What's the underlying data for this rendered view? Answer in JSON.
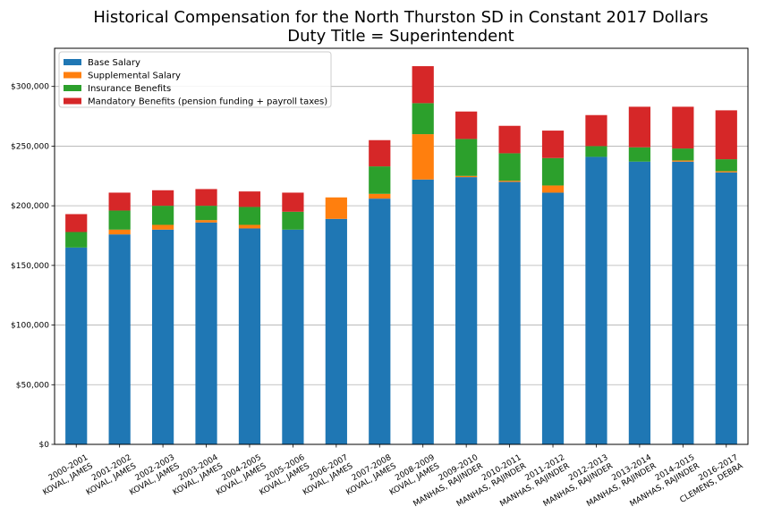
{
  "chart_data": {
    "type": "bar",
    "stacked": true,
    "title": "Historical Compensation for the North Thurston SD in Constant 2017 Dollars",
    "subtitle": "Duty Title = Superintendent",
    "xlabel": "",
    "ylabel": "",
    "ylim": [
      0,
      332000
    ],
    "yticks": [
      0,
      50000,
      100000,
      150000,
      200000,
      250000,
      300000
    ],
    "ytick_labels": [
      "$0",
      "$50,000",
      "$100,000",
      "$150,000",
      "$200,000",
      "$250,000",
      "$300,000"
    ],
    "grid": "horizontal",
    "legend_position": "top-left",
    "categories": [
      [
        "2000-2001",
        "KOVAL, JAMES"
      ],
      [
        "2001-2002",
        "KOVAL, JAMES"
      ],
      [
        "2002-2003",
        "KOVAL, JAMES"
      ],
      [
        "2003-2004",
        "KOVAL, JAMES"
      ],
      [
        "2004-2005",
        "KOVAL, JAMES"
      ],
      [
        "2005-2006",
        "KOVAL, JAMES"
      ],
      [
        "2006-2007",
        "KOVAL, JAMES"
      ],
      [
        "2007-2008",
        "KOVAL, JAMES"
      ],
      [
        "2008-2009",
        "KOVAL, JAMES"
      ],
      [
        "2009-2010",
        "MANHAS, RAJINDER"
      ],
      [
        "2010-2011",
        "MANHAS, RAJINDER"
      ],
      [
        "2011-2012",
        "MANHAS, RAJINDER"
      ],
      [
        "2012-2013",
        "MANHAS, RAJINDER"
      ],
      [
        "2013-2014",
        "MANHAS, RAJINDER"
      ],
      [
        "2014-2015",
        "MANHAS, RAJINDER"
      ],
      [
        "2016-2017",
        "CLEMENS, DEBRA"
      ]
    ],
    "series": [
      {
        "name": "Base Salary",
        "color": "#1f77b4",
        "values": [
          165000,
          176000,
          180000,
          186000,
          181000,
          180000,
          189000,
          206000,
          222000,
          224000,
          220000,
          211000,
          241000,
          237000,
          237000,
          228000
        ]
      },
      {
        "name": "Supplemental Salary",
        "color": "#ff7f0e",
        "values": [
          0,
          4000,
          4000,
          2000,
          3000,
          0,
          18000,
          4000,
          38000,
          1000,
          1000,
          6000,
          0,
          0,
          1000,
          1000
        ]
      },
      {
        "name": "Insurance Benefits",
        "color": "#2ca02c",
        "values": [
          13000,
          16000,
          16000,
          12000,
          15000,
          15000,
          0,
          23000,
          26000,
          31000,
          23000,
          23000,
          9000,
          12000,
          10000,
          10000
        ]
      },
      {
        "name": "Mandatory Benefits (pension funding + payroll taxes)",
        "color": "#d62728",
        "values": [
          15000,
          15000,
          13000,
          14000,
          13000,
          16000,
          0,
          22000,
          31000,
          23000,
          23000,
          23000,
          26000,
          34000,
          35000,
          41000
        ]
      }
    ]
  }
}
